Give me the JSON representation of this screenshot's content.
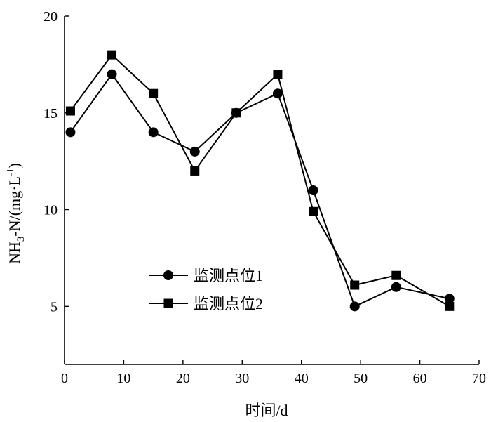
{
  "chart_data": {
    "type": "line",
    "xlabel": "时间/d",
    "ylabel_main": "NH",
    "ylabel_sub": "3",
    "ylabel_mid": "-N/(mg·L",
    "ylabel_sup": "-1",
    "ylabel_end": ")",
    "xlim": [
      0,
      70
    ],
    "ylim": [
      2,
      20
    ],
    "xticks": [
      0,
      10,
      20,
      30,
      40,
      50,
      60,
      70
    ],
    "yticks": [
      5,
      10,
      15,
      20
    ],
    "grid": false,
    "legend_position": "lower-left",
    "series": [
      {
        "name": "监测点位1",
        "marker": "circle",
        "x": [
          1,
          8,
          15,
          22,
          29,
          36,
          42,
          49,
          56,
          65
        ],
        "y": [
          14,
          17,
          14,
          13,
          15,
          16,
          11,
          5,
          6,
          5.4
        ]
      },
      {
        "name": "监测点位2",
        "marker": "square",
        "x": [
          1,
          8,
          15,
          22,
          29,
          36,
          42,
          49,
          56,
          65
        ],
        "y": [
          15.1,
          18,
          16,
          12,
          15,
          17,
          9.9,
          6.1,
          6.6,
          5
        ]
      }
    ]
  }
}
